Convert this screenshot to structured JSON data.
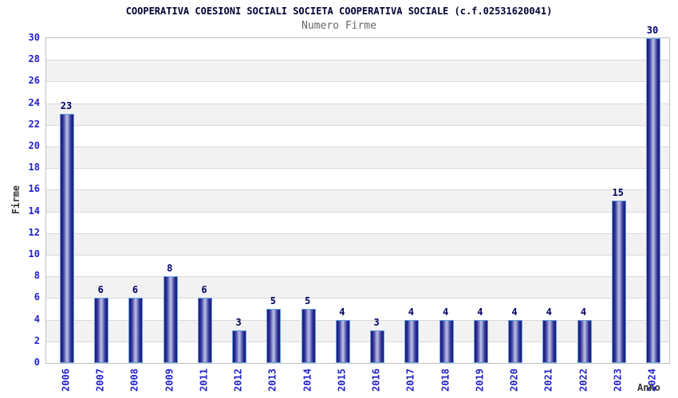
{
  "chart_data": {
    "type": "bar",
    "title": "COOPERATIVA COESIONI SOCIALI SOCIETA COOPERATIVA SOCIALE (c.f.02531620041)",
    "subtitle": "Numero Firme",
    "xlabel": "Anno",
    "ylabel": "Firme",
    "categories": [
      "2006",
      "2007",
      "2008",
      "2009",
      "2011",
      "2012",
      "2013",
      "2014",
      "2015",
      "2016",
      "2017",
      "2018",
      "2019",
      "2020",
      "2021",
      "2022",
      "2023",
      "2024"
    ],
    "values": [
      23,
      6,
      6,
      8,
      6,
      3,
      5,
      5,
      4,
      3,
      4,
      4,
      4,
      4,
      4,
      4,
      15,
      30
    ],
    "ylim": [
      0,
      30
    ],
    "ytick_step": 2,
    "grid": true,
    "legend": "none",
    "band_pattern": "alternating horizontal bands, white and light gray, 2 units tall",
    "colors": {
      "title_color": "#000033",
      "subtitle_color": "#666666",
      "axis_tick_label": "#2222cc",
      "value_label": "#000066",
      "axis_title_color": "#333333",
      "bar_edge": "#1a1a78",
      "bar_mid": "#2e2e96",
      "bar_highlight": "#bcc5e8",
      "bar_border": "#66a3dd",
      "band_alt": "#f2f2f2",
      "gridline": "#d9d9d9",
      "plot_border": "#c0c0c0"
    }
  }
}
